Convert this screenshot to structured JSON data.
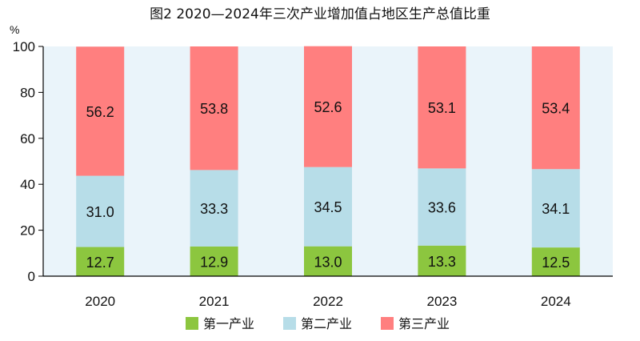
{
  "chart_data": {
    "type": "bar",
    "stacked": true,
    "title": "图2 2020—2024年三次产业增加值占地区生产总值比重",
    "ylabel": "%",
    "xlabel": "",
    "ylim": [
      0,
      100
    ],
    "yticks": [
      "0",
      "20",
      "40",
      "60",
      "80",
      "100"
    ],
    "categories": [
      "2020",
      "2021",
      "2022",
      "2023",
      "2024"
    ],
    "grid": false,
    "legend_position": "bottom",
    "series": [
      {
        "name": "第一产业",
        "color": "#8CC63F",
        "values": [
          12.7,
          12.9,
          13.0,
          13.3,
          12.5
        ],
        "labels": [
          "12.7",
          "12.9",
          "13.0",
          "13.3",
          "12.5"
        ]
      },
      {
        "name": "第二产业",
        "color": "#B7DDE8",
        "values": [
          31.0,
          33.3,
          34.5,
          33.6,
          34.1
        ],
        "labels": [
          "31.0",
          "33.3",
          "34.5",
          "33.6",
          "34.1"
        ]
      },
      {
        "name": "第三产业",
        "color": "#FF7F7F",
        "values": [
          56.2,
          53.8,
          52.6,
          53.1,
          53.4
        ],
        "labels": [
          "56.2",
          "53.8",
          "52.6",
          "53.1",
          "53.4"
        ]
      }
    ],
    "colors": {
      "plot_background": "#EAF4FA",
      "axis": "#000000"
    }
  }
}
